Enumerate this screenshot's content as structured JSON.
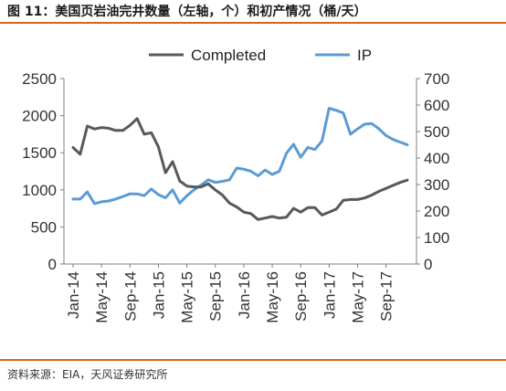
{
  "title": "图 11：美国页岩油完井数量（左轴，个）和初产情况（桶/天）",
  "source": "资料来源：EIA，天风证券研究所",
  "colors": {
    "accent": "#d9631e",
    "completed": "#595959",
    "ip": "#5b9bd5"
  },
  "chart_data": {
    "type": "line",
    "legend_position": "top",
    "grid": false,
    "categories": [
      "Jan-14",
      "Feb-14",
      "Mar-14",
      "Apr-14",
      "May-14",
      "Jun-14",
      "Jul-14",
      "Aug-14",
      "Sep-14",
      "Oct-14",
      "Nov-14",
      "Dec-14",
      "Jan-15",
      "Feb-15",
      "Mar-15",
      "Apr-15",
      "May-15",
      "Jun-15",
      "Jul-15",
      "Aug-15",
      "Sep-15",
      "Oct-15",
      "Nov-15",
      "Dec-15",
      "Jan-16",
      "Feb-16",
      "Mar-16",
      "Apr-16",
      "May-16",
      "Jun-16",
      "Jul-16",
      "Aug-16",
      "Sep-16",
      "Oct-16",
      "Nov-16",
      "Dec-16",
      "Jan-17",
      "Feb-17",
      "Mar-17",
      "Apr-17",
      "May-17",
      "Jun-17",
      "Jul-17",
      "Aug-17",
      "Sep-17",
      "Oct-17",
      "Nov-17",
      "Dec-17"
    ],
    "x_tick_labels": [
      "Jan-14",
      "May-14",
      "Sep-14",
      "Jan-15",
      "May-15",
      "Sep-15",
      "Jan-16",
      "May-16",
      "Sep-16",
      "Jan-17",
      "May-17",
      "Sep-17"
    ],
    "y_left": {
      "ticks": [
        "0",
        "500",
        "1000",
        "1500",
        "2000",
        "2500"
      ],
      "ylim": [
        0,
        2500
      ]
    },
    "y_right": {
      "ticks": [
        "0",
        "100",
        "200",
        "300",
        "400",
        "500",
        "600",
        "700"
      ],
      "ylim": [
        0,
        700
      ]
    },
    "series": [
      {
        "name": "Completed",
        "axis": "left",
        "values": [
          1570,
          1480,
          1860,
          1820,
          1840,
          1830,
          1800,
          1800,
          1870,
          1960,
          1750,
          1770,
          1580,
          1230,
          1380,
          1120,
          1050,
          1040,
          1040,
          1080,
          1000,
          930,
          820,
          770,
          700,
          680,
          600,
          620,
          640,
          620,
          630,
          750,
          700,
          760,
          760,
          660,
          700,
          740,
          860,
          870,
          870,
          890,
          930,
          980,
          1020,
          1060,
          1100,
          1130
        ]
      },
      {
        "name": "IP",
        "axis": "right",
        "values": [
          245,
          245,
          272,
          228,
          235,
          238,
          245,
          255,
          265,
          265,
          258,
          283,
          262,
          250,
          280,
          230,
          258,
          280,
          298,
          318,
          308,
          312,
          318,
          362,
          358,
          350,
          333,
          355,
          338,
          350,
          418,
          452,
          403,
          440,
          432,
          465,
          588,
          580,
          570,
          490,
          510,
          528,
          530,
          510,
          485,
          470,
          460,
          450
        ]
      }
    ]
  }
}
